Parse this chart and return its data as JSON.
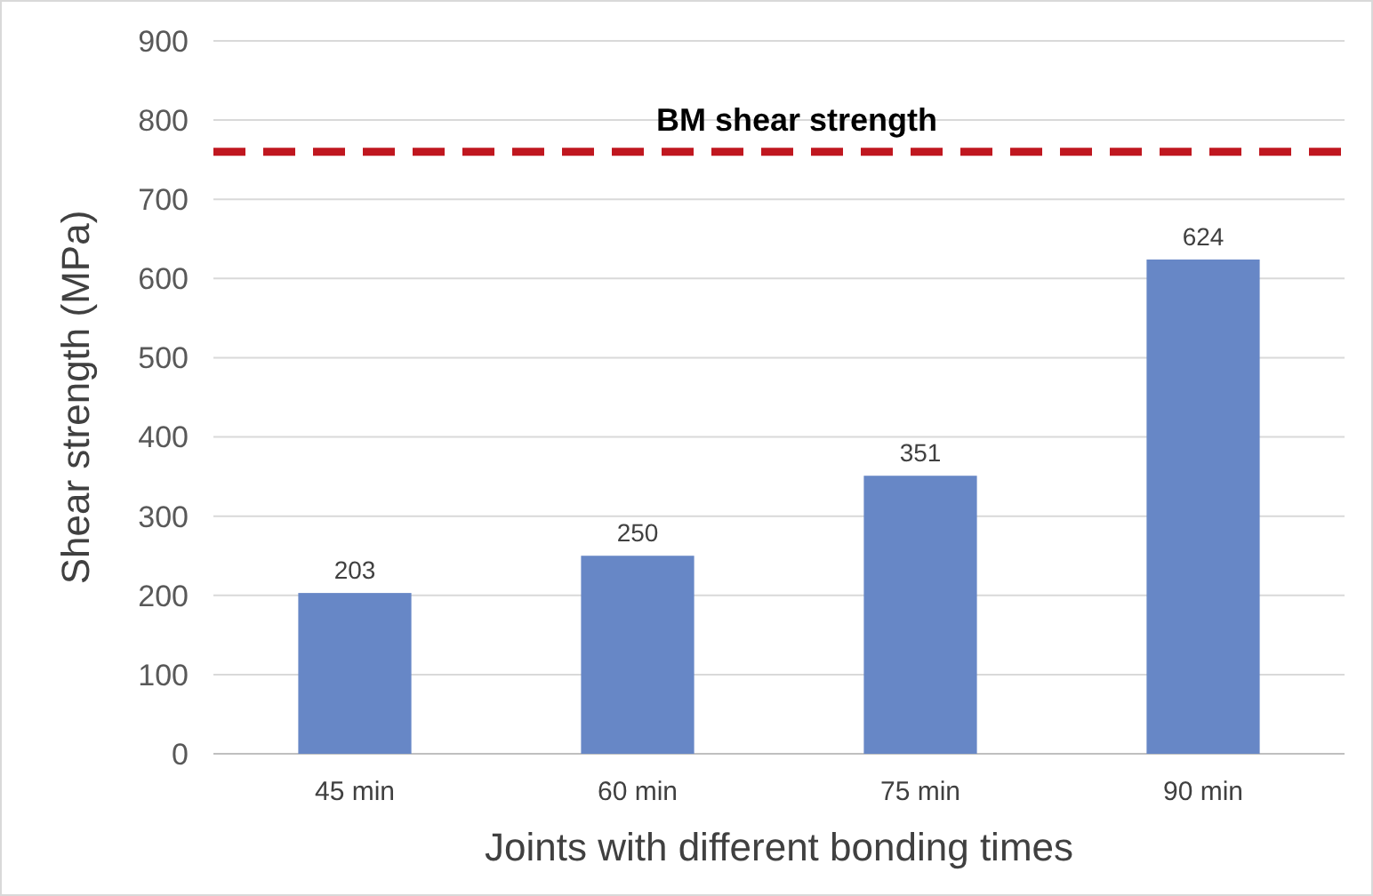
{
  "chart_data": {
    "type": "bar",
    "xlabel": "Joints with different bonding times",
    "ylabel": "Shear strength (MPa)",
    "categories": [
      "45 min",
      "60 min",
      "75 min",
      "90 min"
    ],
    "values": [
      203,
      250,
      351,
      624
    ],
    "color": "#6787c6",
    "data_labels": true,
    "ylim": [
      0,
      900
    ],
    "yticks": [
      0,
      100,
      200,
      300,
      400,
      500,
      600,
      700,
      800,
      900
    ],
    "grid": "y",
    "ref_lines": [
      {
        "axis": "y",
        "value": 760,
        "label": "BM shear strength",
        "color": "#c0171f",
        "line_style": "dashed"
      }
    ]
  }
}
